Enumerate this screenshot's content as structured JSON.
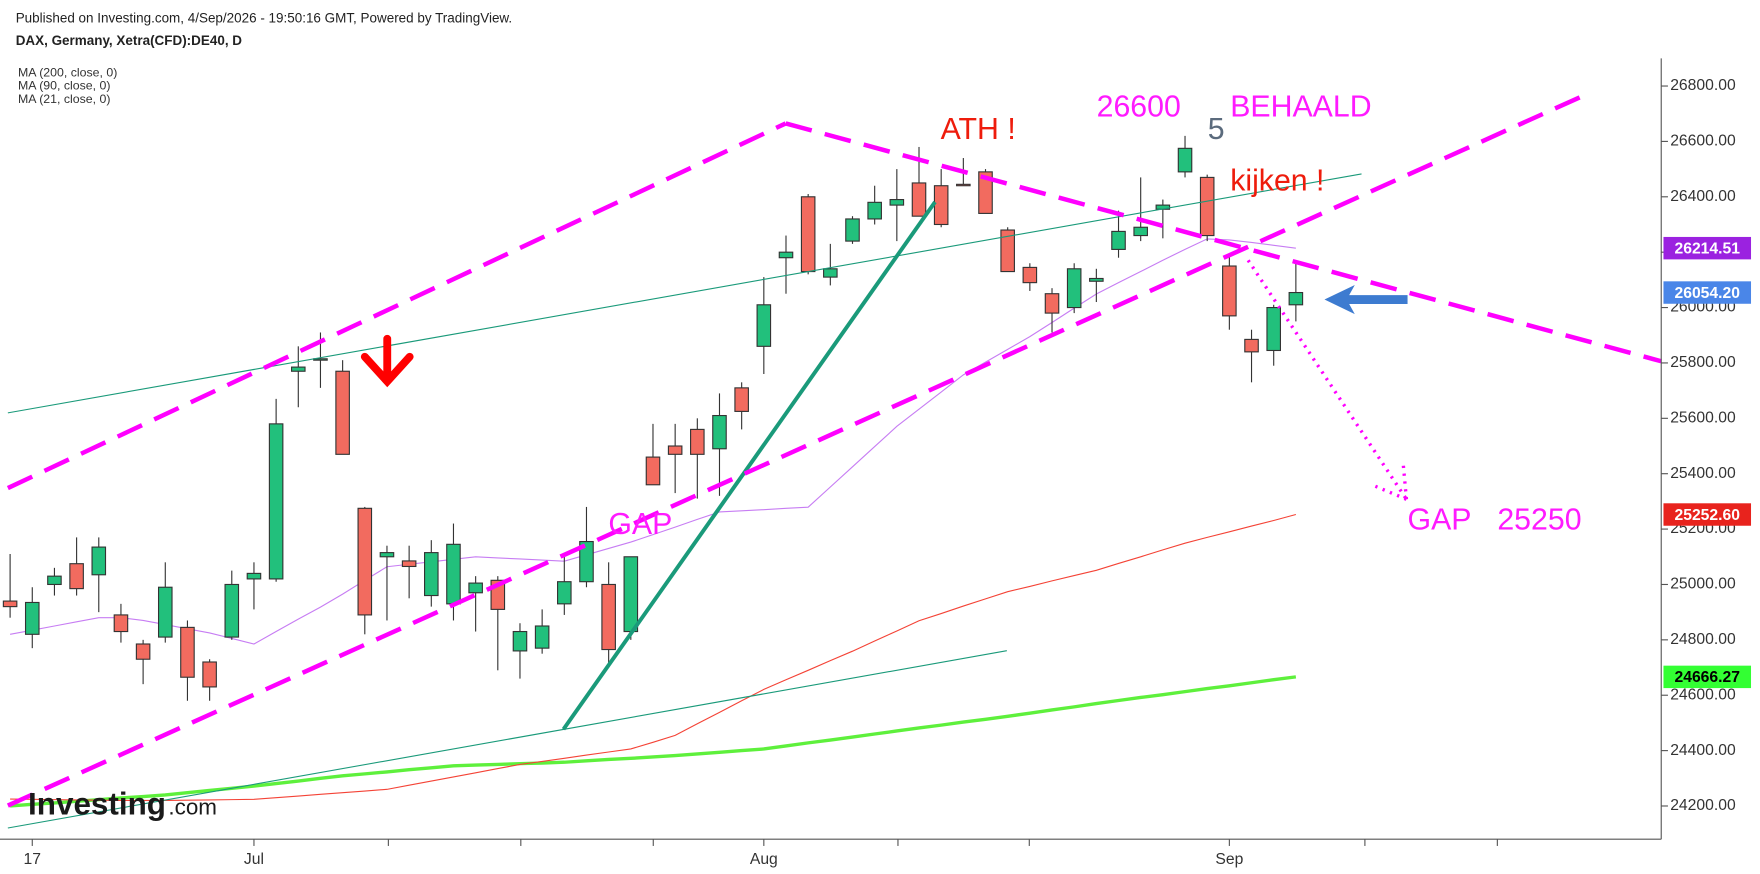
{
  "chart_data": {
    "type": "candlestick",
    "source": "Published on Investing.com, 4/Sep/2026 - 19:50:16 GMT, Powered by TradingView.",
    "title": "DAX, Germany, Xetra(CFD):DE40, D",
    "logo": {
      "brand": "Investing",
      "suffix": ".com"
    },
    "categories": [
      null,
      "17",
      null,
      null,
      null,
      null,
      null,
      null,
      null,
      null,
      null,
      "Jul",
      null,
      null,
      null,
      null,
      null,
      null,
      null,
      null,
      null,
      null,
      null,
      null,
      null,
      null,
      null,
      null,
      null,
      null,
      null,
      null,
      null,
      null,
      "Aug",
      null,
      null,
      null,
      null,
      null,
      null,
      null,
      null,
      null,
      null,
      null,
      null,
      null,
      null,
      null,
      null,
      null,
      null,
      null,
      null,
      "Sep",
      null,
      null,
      null
    ],
    "open": [
      24940,
      24820,
      25000,
      25075,
      25035,
      24890,
      24785,
      24810,
      24845,
      24720,
      24810,
      25020,
      25020,
      25770,
      25810,
      25770,
      25275,
      25100,
      25085,
      24960,
      24930,
      24970,
      25015,
      24760,
      24770,
      24930,
      25010,
      25000,
      24830,
      25460,
      25500,
      25560,
      25490,
      25710,
      25860,
      26180,
      26400,
      26110,
      26240,
      26320,
      26370,
      26450,
      26440,
      26445,
      26490,
      26280,
      26145,
      26050,
      26000,
      26095,
      26210,
      26260,
      26355,
      26490,
      26470,
      26150,
      25885,
      25845,
      26010
    ],
    "high": [
      25110,
      24990,
      25060,
      25170,
      25170,
      24930,
      24800,
      25080,
      24870,
      24730,
      25050,
      25080,
      25670,
      25860,
      25910,
      25810,
      25280,
      25140,
      25140,
      25160,
      25220,
      25030,
      25030,
      24860,
      24910,
      25100,
      25280,
      25080,
      25100,
      25580,
      25580,
      25600,
      25690,
      25730,
      26110,
      26260,
      26410,
      26230,
      26330,
      26440,
      26500,
      26580,
      26500,
      26540,
      26500,
      26290,
      26160,
      26070,
      26160,
      26140,
      26350,
      26470,
      26390,
      26620,
      26480,
      26190,
      25920,
      26010,
      26160
    ],
    "low": [
      24880,
      24770,
      24960,
      24960,
      24900,
      24790,
      24640,
      24790,
      24580,
      24580,
      24800,
      24910,
      25010,
      25640,
      25710,
      25470,
      24820,
      24870,
      24950,
      24920,
      24870,
      24830,
      24690,
      24660,
      24750,
      24890,
      24990,
      24700,
      24800,
      25360,
      25330,
      25310,
      25320,
      25560,
      25760,
      26050,
      26120,
      26080,
      26230,
      26300,
      26240,
      26330,
      26290,
      26440,
      26340,
      26130,
      26060,
      25910,
      25980,
      26020,
      26180,
      26240,
      26250,
      26470,
      26240,
      25920,
      25730,
      25790,
      25950
    ],
    "close": [
      24920,
      24935,
      25030,
      24985,
      25135,
      24830,
      24730,
      24990,
      24665,
      24630,
      25000,
      25040,
      25580,
      25785,
      25815,
      25470,
      24890,
      25115,
      25065,
      25115,
      25145,
      25005,
      24910,
      24830,
      24850,
      25010,
      25155,
      24765,
      25100,
      25360,
      25470,
      25470,
      25610,
      25625,
      26010,
      26200,
      26130,
      26140,
      26320,
      26380,
      26390,
      26330,
      26300,
      26440,
      26340,
      26130,
      26090,
      25980,
      26140,
      26105,
      26275,
      26290,
      26370,
      26575,
      26260,
      25970,
      25840,
      26000,
      26054.2
    ],
    "up_color": "#22c07c",
    "down_color": "#f26b5f",
    "outline_color": "#333333",
    "series": [
      {
        "name": "MA (200, close, 0)",
        "color": "#5ef03c",
        "width": 3,
        "values": [
          24200,
          24206,
          24211,
          24217,
          24223,
          24229,
          24234,
          24240,
          24248,
          24256,
          24264,
          24272,
          24281,
          24290,
          24300,
          24309,
          24316,
          24323,
          24331,
          24338,
          24345,
          24348,
          24350,
          24353,
          24355,
          24358,
          24363,
          24368,
          24372,
          24377,
          24382,
          24388,
          24394,
          24400,
          24406,
          24417,
          24428,
          24438,
          24449,
          24460,
          24471,
          24482,
          24492,
          24503,
          24513,
          24524,
          24535,
          24547,
          24558,
          24570,
          24581,
          24592,
          24602,
          24613,
          24624,
          24634,
          24645,
          24656,
          24666.27
        ]
      },
      {
        "name": "MA (90, close, 0)",
        "color": "#f44336",
        "width": 1,
        "values": [
          24225,
          24224,
          24223,
          24222,
          24221,
          24220,
          24220,
          24220,
          24221,
          24222,
          24223,
          24224,
          24230,
          24236,
          24242,
          24248,
          24254,
          24260,
          24275,
          24290,
          24305,
          24320,
          24335,
          24350,
          24361,
          24372,
          24384,
          24395,
          24406,
          24430,
          24455,
          24497,
          24538,
          24580,
          24621,
          24656,
          24690,
          24725,
          24759,
          24796,
          24832,
          24869,
          24895,
          24922,
          24948,
          24974,
          24993,
          25013,
          25032,
          25051,
          25076,
          25100,
          25125,
          25149,
          25170,
          25190,
          25211,
          25231,
          25252.6
        ]
      },
      {
        "name": "MA (21, close, 0)",
        "color": "#c77df3",
        "width": 1,
        "values": [
          24820,
          24835,
          24850,
          24865,
          24880,
          24880,
          24870,
          24855,
          24840,
          24825,
          24805,
          24785,
          24830,
          24875,
          24918,
          24965,
          25015,
          25064,
          25073,
          25082,
          25091,
          25100,
          25096,
          25092,
          25088,
          25084,
          25107,
          25130,
          25153,
          25180,
          25207,
          25235,
          25262,
          25266,
          25270,
          25275,
          25279,
          25352,
          25425,
          25498,
          25571,
          25633,
          25695,
          25757,
          25803,
          25849,
          25895,
          25946,
          25998,
          26049,
          26090,
          26130,
          26171,
          26210,
          26248,
          26244,
          26235,
          26225,
          26214.51
        ]
      }
    ],
    "price_tags": [
      {
        "value": 26214.51,
        "label": "26214.51",
        "color": "#9b22e0",
        "text_color": "#ffffff"
      },
      {
        "value": 26054.2,
        "label": "26054.20",
        "color": "#4a86e8",
        "text_color": "#ffffff"
      },
      {
        "value": 25252.6,
        "label": "25252.60",
        "color": "#e8231d",
        "text_color": "#ffffff"
      },
      {
        "value": 24666.27,
        "label": "24666.27",
        "color": "#33ff33",
        "text_color": "#000000"
      }
    ],
    "ylim": [
      24080,
      26900
    ],
    "yticks": [
      {
        "value": 24200,
        "label": "24200.00"
      },
      {
        "value": 24400,
        "label": "24400.00"
      },
      {
        "value": 24600,
        "label": "24600.00"
      },
      {
        "value": 24800,
        "label": "24800.00"
      },
      {
        "value": 25000,
        "label": "25000.00"
      },
      {
        "value": 25200,
        "label": "25200.00"
      },
      {
        "value": 25400,
        "label": "25400.00"
      },
      {
        "value": 25600,
        "label": "25600.00"
      },
      {
        "value": 25800,
        "label": "25800.00"
      },
      {
        "value": 26000,
        "label": "26000.00"
      },
      {
        "value": 26200,
        "label": "26200.00"
      },
      {
        "value": 26400,
        "label": "26400.00"
      },
      {
        "value": 26600,
        "label": "26600.00"
      },
      {
        "value": 26800,
        "label": "26800.00"
      }
    ],
    "grid": false,
    "annotations": [
      "ATH !",
      "26600",
      "5",
      "BEHAALD",
      "kijken !",
      "GAP",
      "GAP",
      "25250"
    ]
  }
}
